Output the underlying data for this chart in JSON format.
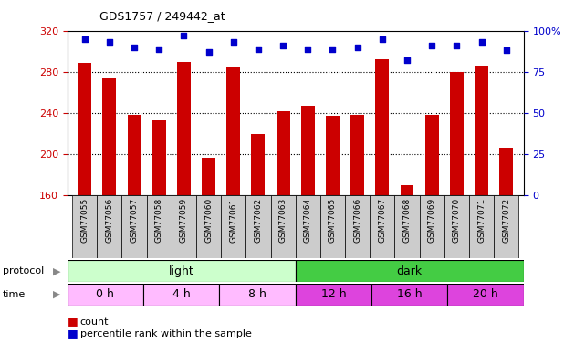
{
  "title": "GDS1757 / 249442_at",
  "samples": [
    "GSM77055",
    "GSM77056",
    "GSM77057",
    "GSM77058",
    "GSM77059",
    "GSM77060",
    "GSM77061",
    "GSM77062",
    "GSM77063",
    "GSM77064",
    "GSM77065",
    "GSM77066",
    "GSM77067",
    "GSM77068",
    "GSM77069",
    "GSM77070",
    "GSM77071",
    "GSM77072"
  ],
  "counts": [
    289,
    274,
    238,
    233,
    290,
    196,
    284,
    219,
    242,
    247,
    237,
    238,
    292,
    170,
    238,
    280,
    286,
    206
  ],
  "percentile_ranks": [
    95,
    93,
    90,
    89,
    97,
    87,
    93,
    89,
    91,
    89,
    89,
    90,
    95,
    82,
    91,
    91,
    93,
    88
  ],
  "ylim_left": [
    160,
    320
  ],
  "ylim_right": [
    0,
    100
  ],
  "yticks_left": [
    160,
    200,
    240,
    280,
    320
  ],
  "yticks_right": [
    0,
    25,
    50,
    75,
    100
  ],
  "bar_color": "#cc0000",
  "dot_color": "#0000cc",
  "protocol_light_color": "#ccffcc",
  "protocol_dark_color": "#44cc44",
  "time_light_color": "#ffbbff",
  "time_dark_color": "#cc44cc",
  "protocol_groups": [
    {
      "label": "light",
      "start": 0,
      "end": 9,
      "color": "#ccffcc"
    },
    {
      "label": "dark",
      "start": 9,
      "end": 18,
      "color": "#44cc44"
    }
  ],
  "time_groups": [
    {
      "label": "0 h",
      "start": 0,
      "end": 3,
      "color": "#ffbbff"
    },
    {
      "label": "4 h",
      "start": 3,
      "end": 6,
      "color": "#ffbbff"
    },
    {
      "label": "8 h",
      "start": 6,
      "end": 9,
      "color": "#ffbbff"
    },
    {
      "label": "12 h",
      "start": 9,
      "end": 12,
      "color": "#dd44dd"
    },
    {
      "label": "16 h",
      "start": 12,
      "end": 15,
      "color": "#dd44dd"
    },
    {
      "label": "20 h",
      "start": 15,
      "end": 18,
      "color": "#dd44dd"
    }
  ],
  "left_axis_color": "#cc0000",
  "right_axis_color": "#0000cc",
  "bg_color": "#ffffff",
  "xticklabel_bg": "#cccccc"
}
